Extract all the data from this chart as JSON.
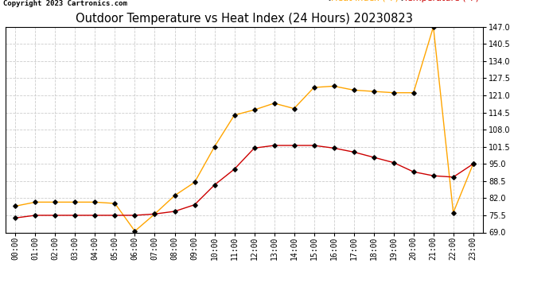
{
  "title": "Outdoor Temperature vs Heat Index (24 Hours) 20230823",
  "copyright": "Copyright 2023 Cartronics.com",
  "legend_heat_index": "Heat Index (°F)",
  "legend_temperature": "Temperature (°F)",
  "hours": [
    "00:00",
    "01:00",
    "02:00",
    "03:00",
    "04:00",
    "05:00",
    "06:00",
    "07:00",
    "08:00",
    "09:00",
    "10:00",
    "11:00",
    "12:00",
    "13:00",
    "14:00",
    "15:00",
    "16:00",
    "17:00",
    "18:00",
    "19:00",
    "20:00",
    "21:00",
    "22:00",
    "23:00"
  ],
  "heat_index": [
    79.0,
    80.5,
    80.5,
    80.5,
    80.5,
    80.0,
    69.5,
    76.0,
    83.0,
    88.0,
    101.5,
    113.5,
    115.5,
    118.0,
    116.0,
    124.0,
    124.5,
    123.0,
    122.5,
    122.0,
    122.0,
    147.0,
    76.5,
    95.0
  ],
  "temperature": [
    74.5,
    75.5,
    75.5,
    75.5,
    75.5,
    75.5,
    75.5,
    76.0,
    77.0,
    79.5,
    87.0,
    93.0,
    101.0,
    102.0,
    102.0,
    102.0,
    101.0,
    99.5,
    97.5,
    95.5,
    92.0,
    90.5,
    90.0,
    95.0
  ],
  "heat_index_color": "#FFA500",
  "temperature_color": "#CC0000",
  "ylim_min": 69.0,
  "ylim_max": 147.0,
  "yticks": [
    69.0,
    75.5,
    82.0,
    88.5,
    95.0,
    101.5,
    108.0,
    114.5,
    121.0,
    127.5,
    134.0,
    140.5,
    147.0
  ],
  "background_color": "#ffffff",
  "grid_color": "#cccccc",
  "title_fontsize": 10.5,
  "tick_fontsize": 7,
  "legend_fontsize": 8,
  "copyright_fontsize": 6.5
}
